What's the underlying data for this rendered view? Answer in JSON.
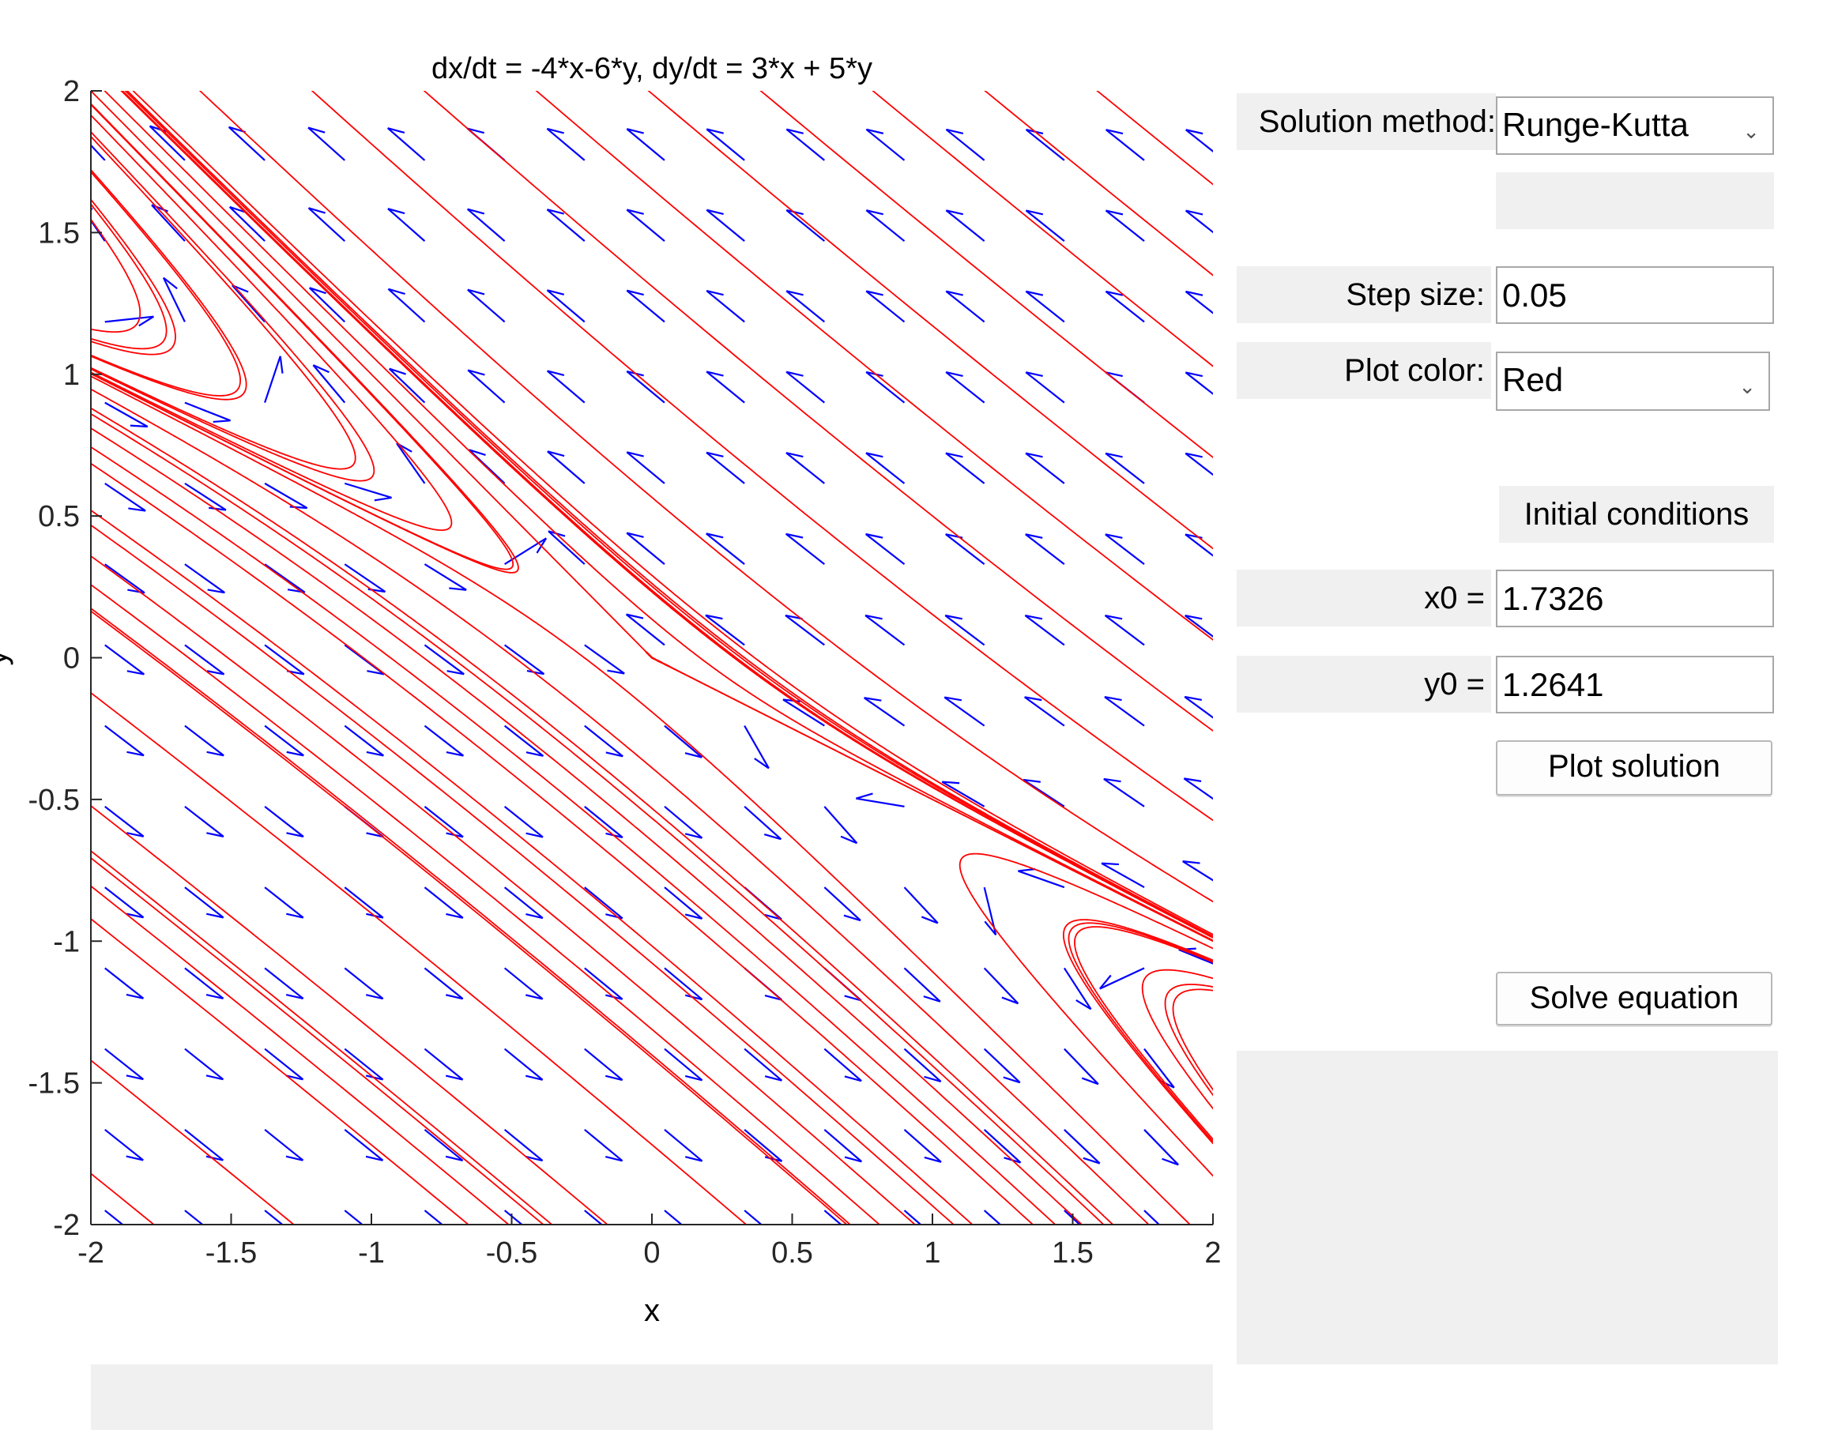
{
  "chart_data": {
    "type": "phase-plane",
    "title": "dx/dt = -4*x-6*y, dy/dt = 3*x + 5*y",
    "xlabel": "x",
    "ylabel": "y",
    "xlim": [
      -2,
      2
    ],
    "ylim": [
      -2,
      2
    ],
    "x_ticks": [
      "-2",
      "-1.5",
      "-1",
      "-0.5",
      "0",
      "0.5",
      "1",
      "1.5",
      "2"
    ],
    "y_ticks": [
      "2",
      "1.5",
      "1",
      "0.5",
      "0",
      "-0.5",
      "-1",
      "-1.5",
      "-2"
    ],
    "system": {
      "dx_dt": [
        -4,
        -6
      ],
      "dy_dt": [
        3,
        5
      ]
    },
    "direction_field": {
      "color": "#0000ff",
      "grid_start": -1.95,
      "grid_step": 0.285,
      "grid_count": 15
    },
    "trajectories": {
      "color": "#ff0000",
      "starts": [
        [
          -1.9,
          1.95
        ],
        [
          -1.9,
          1.85
        ],
        [
          -1.9,
          1.75
        ],
        [
          -1.9,
          1.6
        ],
        [
          -1.9,
          1.4
        ],
        [
          -1.9,
          1.1
        ],
        [
          -1.9,
          0.8
        ],
        [
          -1.9,
          0.45
        ],
        [
          -1.9,
          0.1
        ],
        [
          -1.9,
          -0.2
        ],
        [
          -1.9,
          -0.6
        ],
        [
          -1.9,
          -1.0
        ],
        [
          -1.9,
          -1.5
        ],
        [
          -1.9,
          -1.9
        ],
        [
          -1.7,
          1.15
        ],
        [
          -1.5,
          1.1
        ],
        [
          -1.2,
          0.95
        ],
        [
          -0.9,
          0.75
        ],
        [
          -0.6,
          0.5
        ],
        [
          -0.3,
          0.3
        ],
        [
          -1.6,
          1.99
        ],
        [
          -1.2,
          1.99
        ],
        [
          -0.8,
          1.99
        ],
        [
          -0.4,
          1.99
        ],
        [
          0.0,
          1.99
        ],
        [
          0.4,
          1.99
        ],
        [
          0.8,
          1.99
        ],
        [
          1.2,
          1.99
        ],
        [
          1.6,
          1.99
        ],
        [
          -1.3,
          0.2
        ],
        [
          -0.8,
          -0.1
        ],
        [
          -0.3,
          -0.4
        ],
        [
          0.2,
          -0.7
        ],
        [
          0.7,
          -1.0
        ],
        [
          1.2,
          -1.3
        ],
        [
          -1.0,
          -0.6
        ],
        [
          -0.5,
          -0.9
        ],
        [
          0.0,
          -1.2
        ],
        [
          0.5,
          -1.5
        ],
        [
          -1.5,
          -1.2
        ],
        [
          -1.0,
          -1.5
        ],
        [
          -0.6,
          -1.8
        ],
        [
          1.4,
          -0.7
        ],
        [
          1.5,
          -0.8
        ],
        [
          1.6,
          -0.95
        ],
        [
          1.75,
          -1.15
        ],
        [
          1.85,
          -1.3
        ],
        [
          1.95,
          -1.45
        ],
        [
          1.3,
          -0.6
        ],
        [
          1.1,
          -0.5
        ],
        [
          0.9,
          -0.4
        ],
        [
          0.6,
          -0.2
        ],
        [
          0.3,
          0.0
        ],
        [
          1.9,
          -1.6
        ],
        [
          1.95,
          -1.05
        ],
        [
          1.9,
          -0.95
        ]
      ]
    }
  },
  "controls": {
    "method_label": "Solution method:",
    "method_value": "Runge-Kutta",
    "step_label": "Step size:",
    "step_value": "0.05",
    "color_label": "Plot color:",
    "color_value": "Red",
    "ic_heading": "Initial conditions",
    "x0_label": "x0 =",
    "x0_value": "1.7326",
    "y0_label": "y0 =",
    "y0_value": "1.2641",
    "plot_button": "Plot solution",
    "solve_button": "Solve equation"
  },
  "icons": {
    "dropdown": "chevron-down-icon"
  }
}
